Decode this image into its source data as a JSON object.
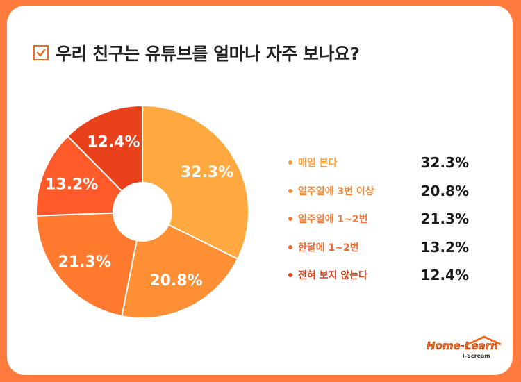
{
  "title": "우리 친구는 유튜브를 얼마나 자주 보나요?",
  "icons": {
    "title": "checkbox-icon"
  },
  "colors": {
    "frame": "#ff7a3d",
    "accent": "#f26a21",
    "slice1": "#ffa940",
    "slice2": "#ff8f35",
    "slice3": "#ff7a2f",
    "slice4": "#ff5a2a",
    "slice5": "#e8401a"
  },
  "chart_data": {
    "type": "pie",
    "donut": true,
    "categories": [
      "매일 본다",
      "일주일에 3번 이상",
      "일주일에 1~2번",
      "한달에 1~2번",
      "전혀 보지 않는다"
    ],
    "values": [
      32.3,
      20.8,
      21.3,
      13.2,
      12.4
    ],
    "value_labels": [
      "32.3%",
      "20.8%",
      "21.3%",
      "13.2%",
      "12.4%"
    ],
    "colors": [
      "#ffa940",
      "#ff8f35",
      "#ff7a2f",
      "#ff5a2a",
      "#e8401a"
    ],
    "legend_label_colors": [
      "#f5a03a",
      "#f08a35",
      "#f07a35",
      "#ee6a30",
      "#d9431c"
    ],
    "legend_position": "right"
  },
  "logo": {
    "brand": "Home-Learn",
    "sub": "i-Scream"
  }
}
